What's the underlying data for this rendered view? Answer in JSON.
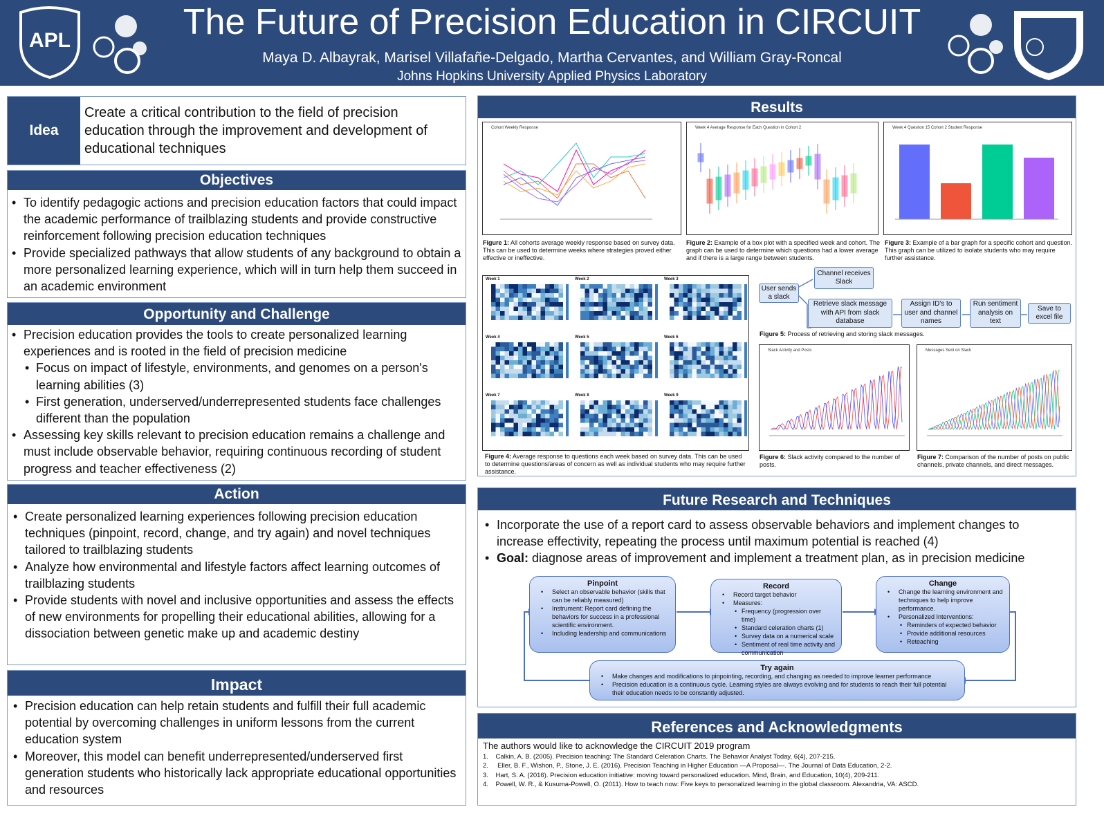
{
  "header": {
    "title": "The Future of Precision Education in CIRCUIT",
    "authors": "Maya D. Albayrak, Marisel Villafañe-Delgado, Martha Cervantes, and  William Gray-Roncal",
    "affiliation": "Johns Hopkins University Applied Physics Laboratory",
    "logo_left": "APL"
  },
  "idea": {
    "label": "Idea",
    "text": "Create a critical contribution to the field of precision education through the improvement and development of educational techniques"
  },
  "objectives": {
    "heading": "Objectives",
    "items": [
      {
        "text": "To identify pedagogic actions and precision education factors that could impact the academic performance of trailblazing students and provide constructive reinforcement following precision education techniques"
      },
      {
        "text": "Provide specialized pathways that allow students of any background to obtain a more personalized learning experience, which will in turn help them succeed in an academic environment"
      }
    ]
  },
  "opportunity": {
    "heading": "Opportunity and Challenge",
    "items": [
      {
        "text": "Precision education provides the tools to create personalized learning experiences and is rooted in the field of precision medicine",
        "sub": [
          "Focus on impact of lifestyle, environments, and genomes on a person's learning abilities (3)",
          "First generation, underserved/underrepresented students face challenges different than the population"
        ]
      },
      {
        "text": "Assessing key skills relevant to precision education remains a challenge and must include observable behavior, requiring continuous recording of student progress and teacher effectiveness (2)"
      }
    ]
  },
  "action": {
    "heading": "Action",
    "items": [
      {
        "text": "Create personalized learning experiences following precision education techniques (pinpoint, record, change, and try again) and novel techniques tailored to trailblazing students"
      },
      {
        "text": "Analyze how environmental and lifestyle factors affect learning outcomes of trailblazing students"
      },
      {
        "text": "Provide students with novel and inclusive opportunities and assess the effects of new environments for propelling their educational abilities, allowing for a dissociation between genetic make up and academic destiny"
      }
    ]
  },
  "impact": {
    "heading": "Impact",
    "items": [
      {
        "text": "Precision education can help retain students and fulfill their full academic potential by overcoming challenges in uniform lessons from the current education system"
      },
      {
        "text": "Moreover, this model can benefit underrepresented/underserved first generation students who historically lack appropriate educational opportunities and resources"
      }
    ]
  },
  "results": {
    "heading": "Results",
    "figures": [
      {
        "title": "Cohort Weekly Response",
        "label": "Figure 1:",
        "caption": " All cohorts average weekly response based on survey data. This can be used to determine weeks where strategies proved either effective or ineffective."
      },
      {
        "title": "Week 4 Average Response for Each Question in Cohort 2",
        "label": "Figure 2:",
        "caption": " Example of a box plot with a specified week and cohort. The graph can be used to determine which questions had a lower average and if there is a large range between students."
      },
      {
        "title": "Week 4 Question 15 Cohort 2 Student Response",
        "label": "Figure 3:",
        "caption": " Example of a bar graph for a specific cohort and question. This graph can be utilized to isolate students who may require further assistance."
      },
      {
        "label": "Figure 4:",
        "caption": " Average response to questions each week based on survey data. This can be used to determine questions/areas of concern as well as individual students who may require further assistance."
      },
      {
        "label": "Figure 5:",
        "caption": " Process of retrieving and storing slack messages."
      },
      {
        "title": "Slack Activity and Posts",
        "label": "Figure 6:",
        "caption": " Slack activity compared to the number of posts."
      },
      {
        "title": "Messages Sent on Slack",
        "label": "Figure 7:",
        "caption": " Comparison of the number of posts on public channels, private channels, and direct messages."
      }
    ],
    "weeks": [
      "Week 1",
      "Week 2",
      "Week 3",
      "Week 4",
      "Week 5",
      "Week 6",
      "Week 7",
      "Week 8",
      "Week 9"
    ],
    "flow": [
      "User sends a slack",
      "Channel receives Slack",
      "Retrieve slack message with API  from  slack database",
      "Assign ID's to user and channel names",
      "Run sentiment analysis on text",
      "Save to excel file"
    ]
  },
  "future": {
    "heading": "Future Research and Techniques",
    "items": [
      {
        "text": "Incorporate the use of a report card to assess observable behaviors and implement changes to increase effectivity, repeating the process until maximum potential is reached (4)"
      },
      {
        "bold": "Goal:",
        "text": " diagnose areas of improvement and implement a treatment plan, as in precision medicine"
      }
    ],
    "cycle": [
      {
        "title": "Pinpoint",
        "items": [
          {
            "text": "Select an observable behavior (skills that can be reliably measured)"
          },
          {
            "text": "Instrument: Report card defining the behaviors for success in a professional scientific environment."
          },
          {
            "text": "Including leadership and communications"
          }
        ]
      },
      {
        "title": "Record",
        "items": [
          {
            "text": "Record target behavior"
          },
          {
            "text": "Measures:",
            "sub": [
              "Frequency (progression over time)",
              "Standard celeration charts (1)",
              "Survey data on a numerical scale",
              "Sentiment of real time activity and communication"
            ]
          }
        ]
      },
      {
        "title": "Change",
        "items": [
          {
            "text": "Change the learning environment and techniques to help improve performance."
          },
          {
            "text": "Personalized Interventions:",
            "sub": [
              "Reminders of expected behavior",
              "Provide additional resources",
              "Reteaching"
            ]
          }
        ]
      },
      {
        "title": "Try again",
        "items": [
          {
            "text": "Make changes and modifications to pinpointing, recording, and changing as needed to improve learner performance"
          },
          {
            "text": "Precision education is a continuous cycle. Learning styles are always evolving and for students to reach their full potential their education needs to be constantly adjusted."
          }
        ]
      }
    ]
  },
  "references": {
    "heading": "References and Acknowledgments",
    "ack": "The authors would like to acknowledge the CIRCUIT 2019 program",
    "items": [
      "1.    Calkin, A. B. (2005). Precision teaching: The Standard Celeration Charts. The Behavior Analyst Today, 6(4), 207-215.",
      "2.     Eller, B. F., Wishon, P., Stone, J. E. (2016). Precision Teaching in Higher Education —A Proposal—. The Journal of Data Education, 2-2.",
      "3.    Hart, S. A. (2016). Precision education initiative: moving toward personalized education. Mind, Brain, and Education, 10(4), 209-211.",
      "4.    Powell, W. R., & Kusuma-Powell, O. (2011). How to teach now: Five keys to personalized learning in the global classroom. Alexandria, VA: ASCD."
    ]
  }
}
